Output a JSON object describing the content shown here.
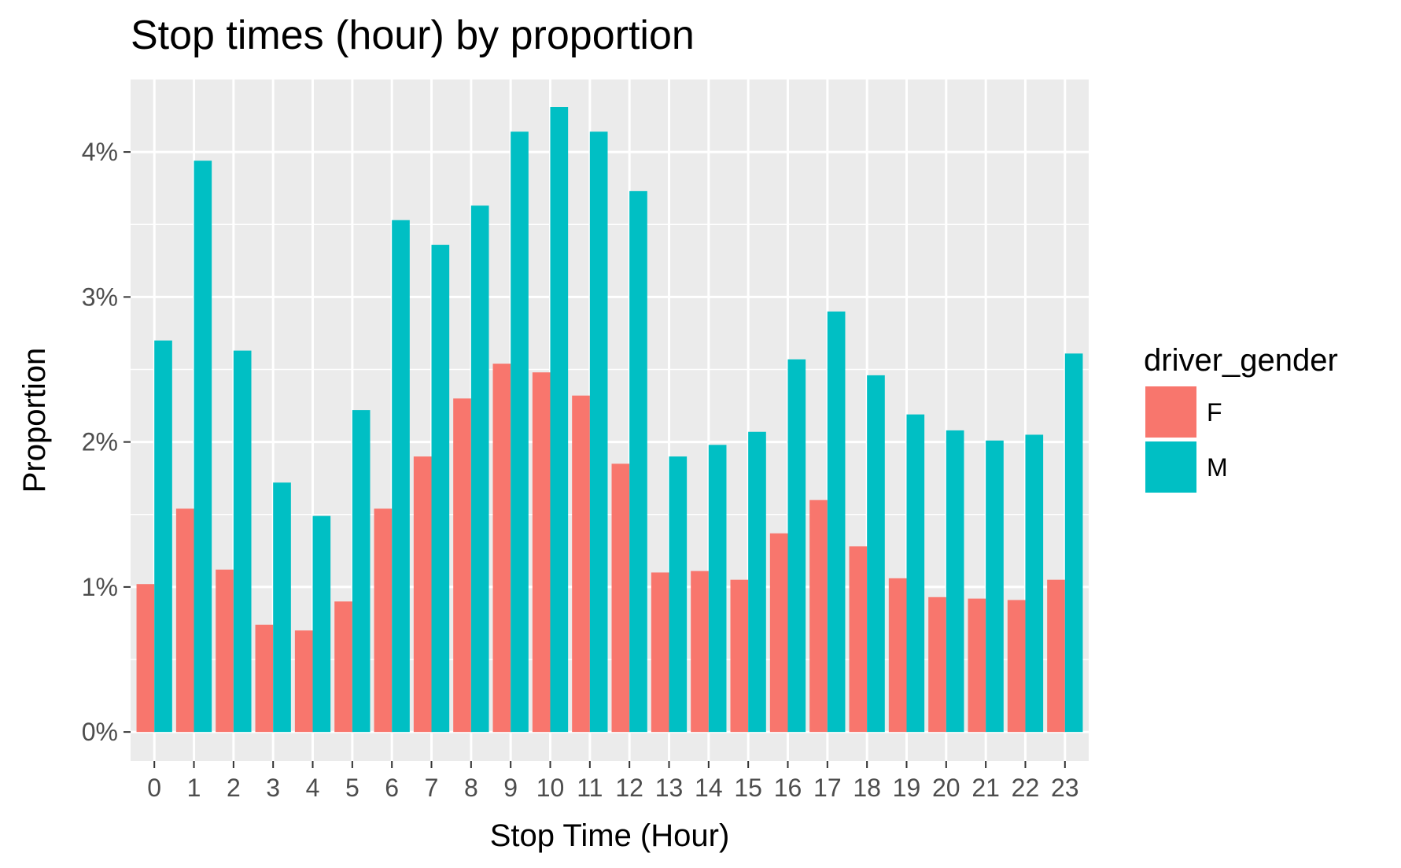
{
  "chart_data": {
    "type": "bar",
    "title": "Stop times (hour) by proportion",
    "xlabel": "Stop Time (Hour)",
    "ylabel": "Proportion",
    "categories": [
      "0",
      "1",
      "2",
      "3",
      "4",
      "5",
      "6",
      "7",
      "8",
      "9",
      "10",
      "11",
      "12",
      "13",
      "14",
      "15",
      "16",
      "17",
      "18",
      "19",
      "20",
      "21",
      "22",
      "23"
    ],
    "series": [
      {
        "name": "F",
        "color": "#F8766D",
        "values": [
          1.02,
          1.54,
          1.12,
          0.74,
          0.7,
          0.9,
          1.54,
          1.9,
          2.3,
          2.54,
          2.48,
          2.32,
          1.85,
          1.1,
          1.11,
          1.05,
          1.37,
          1.6,
          1.28,
          1.06,
          0.93,
          0.92,
          0.91,
          1.05
        ]
      },
      {
        "name": "M",
        "color": "#00BFC4",
        "values": [
          2.7,
          3.94,
          2.63,
          1.72,
          1.49,
          2.22,
          3.53,
          3.36,
          3.63,
          4.14,
          4.31,
          4.14,
          3.73,
          1.9,
          1.98,
          2.07,
          2.57,
          2.9,
          2.46,
          2.19,
          2.08,
          2.01,
          2.05,
          2.61
        ]
      }
    ],
    "ylim": [
      -0.2,
      4.5
    ],
    "y_ticks": [
      0,
      1,
      2,
      3,
      4
    ],
    "y_tick_labels": [
      "0%",
      "1%",
      "2%",
      "3%",
      "4%"
    ],
    "legend": {
      "title": "driver_gender",
      "position": "right"
    },
    "grid": true,
    "panel_background": "#EBEBEB"
  }
}
